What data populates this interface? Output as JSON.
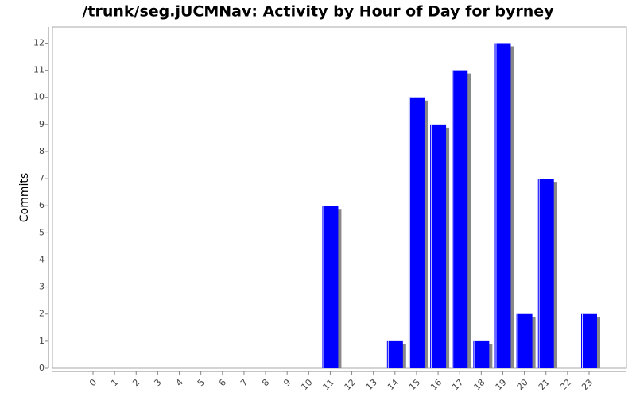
{
  "chart_data": {
    "type": "bar",
    "title": "/trunk/seg.jUCMNav: Activity by Hour of Day for byrney",
    "y_label": "Commits",
    "categories": [
      "0",
      "1",
      "2",
      "3",
      "4",
      "5",
      "6",
      "7",
      "8",
      "9",
      "10",
      "11",
      "12",
      "13",
      "14",
      "15",
      "16",
      "17",
      "18",
      "19",
      "20",
      "21",
      "22",
      "23"
    ],
    "values": [
      0,
      0,
      0,
      0,
      0,
      0,
      0,
      0,
      0,
      0,
      0,
      6,
      0,
      0,
      1,
      10,
      9,
      11,
      1,
      12,
      2,
      7,
      0,
      2
    ],
    "color": "#0000ff",
    "ylim": [
      0,
      12.6
    ],
    "yticks": [
      0,
      1,
      2,
      3,
      4,
      5,
      6,
      7,
      8,
      9,
      10,
      11,
      12
    ],
    "grid": false
  }
}
